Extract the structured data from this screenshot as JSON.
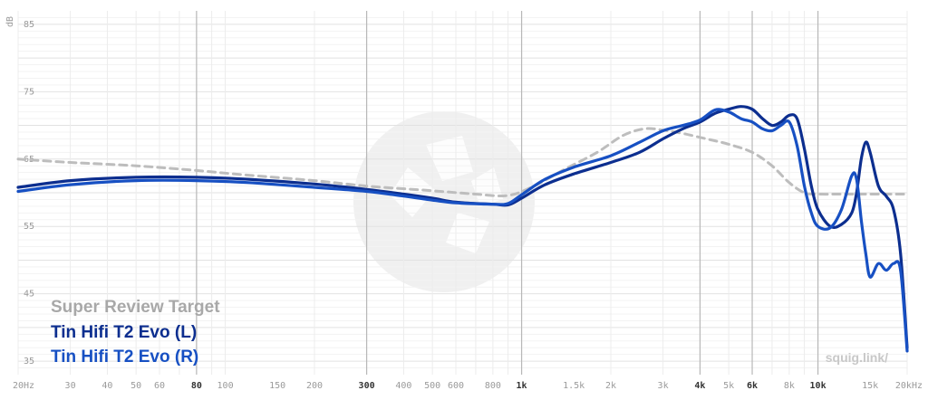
{
  "chart_data": {
    "type": "line",
    "title": "",
    "xlabel": "",
    "ylabel": "dB",
    "x_scale": "log",
    "xlim": [
      20,
      20000
    ],
    "ylim": [
      33,
      87
    ],
    "grid": true,
    "legend_position": "bottom-left",
    "x_ticks": [
      {
        "value": 20,
        "label": "20Hz",
        "major": false
      },
      {
        "value": 30,
        "label": "30",
        "major": false
      },
      {
        "value": 40,
        "label": "40",
        "major": false
      },
      {
        "value": 50,
        "label": "50",
        "major": false
      },
      {
        "value": 60,
        "label": "60",
        "major": false
      },
      {
        "value": 80,
        "label": "80",
        "major": true
      },
      {
        "value": 100,
        "label": "100",
        "major": false
      },
      {
        "value": 150,
        "label": "150",
        "major": false
      },
      {
        "value": 200,
        "label": "200",
        "major": false
      },
      {
        "value": 300,
        "label": "300",
        "major": true
      },
      {
        "value": 400,
        "label": "400",
        "major": false
      },
      {
        "value": 500,
        "label": "500",
        "major": false
      },
      {
        "value": 600,
        "label": "600",
        "major": false
      },
      {
        "value": 800,
        "label": "800",
        "major": false
      },
      {
        "value": 1000,
        "label": "1k",
        "major": true
      },
      {
        "value": 1500,
        "label": "1.5k",
        "major": false
      },
      {
        "value": 2000,
        "label": "2k",
        "major": false
      },
      {
        "value": 3000,
        "label": "3k",
        "major": false
      },
      {
        "value": 4000,
        "label": "4k",
        "major": true
      },
      {
        "value": 5000,
        "label": "5k",
        "major": false
      },
      {
        "value": 6000,
        "label": "6k",
        "major": true
      },
      {
        "value": 8000,
        "label": "8k",
        "major": false
      },
      {
        "value": 10000,
        "label": "10k",
        "major": true
      },
      {
        "value": 15000,
        "label": "15k",
        "major": false
      },
      {
        "value": 20000,
        "label": "20kHz",
        "major": false
      }
    ],
    "y_ticks": [
      {
        "value": 85,
        "label": "85"
      },
      {
        "value": 75,
        "label": "75"
      },
      {
        "value": 65,
        "label": "65"
      },
      {
        "value": 55,
        "label": "55"
      },
      {
        "value": 45,
        "label": "45"
      },
      {
        "value": 35,
        "label": "35"
      }
    ],
    "series": [
      {
        "name": "Super Review Target",
        "color": "#bdbdbd",
        "dashed": true,
        "x": [
          20,
          30,
          50,
          80,
          120,
          200,
          300,
          500,
          700,
          900,
          1100,
          1400,
          1800,
          2200,
          2600,
          3000,
          3500,
          4200,
          5000,
          6000,
          7000,
          8000,
          9000,
          10000,
          12000,
          15000,
          18000,
          20000
        ],
        "y": [
          65,
          64.5,
          64,
          63.3,
          62.6,
          61.8,
          61,
          60.3,
          59.8,
          59.6,
          61,
          63.5,
          66,
          68.5,
          69.5,
          69.3,
          68.8,
          68,
          67.2,
          66,
          64,
          61.5,
          60,
          59.8,
          59.8,
          59.8,
          59.8,
          59.8
        ]
      },
      {
        "name": "Tin Hifi T2 Evo (L)",
        "color": "#0c2e8f",
        "dashed": false,
        "x": [
          20,
          30,
          50,
          80,
          120,
          200,
          300,
          400,
          500,
          600,
          800,
          900,
          1000,
          1200,
          1500,
          2000,
          2500,
          3000,
          3500,
          4000,
          4500,
          5000,
          5500,
          6000,
          6500,
          7000,
          7500,
          8000,
          8500,
          9000,
          9500,
          10000,
          11000,
          12000,
          13000,
          13500,
          14000,
          14500,
          15000,
          16000,
          17000,
          18000,
          19000,
          20000
        ],
        "y": [
          60.8,
          61.8,
          62.3,
          62.3,
          62,
          61.3,
          60.5,
          59.8,
          59.2,
          58.6,
          58.3,
          58.2,
          59.2,
          61.2,
          62.8,
          64.5,
          66,
          68,
          69.5,
          70.5,
          71.8,
          72.4,
          72.8,
          72.4,
          71,
          70,
          70.5,
          71.5,
          71,
          66.5,
          61,
          57.5,
          55,
          55.3,
          57,
          60,
          65,
          67.5,
          66,
          61,
          59.5,
          57.5,
          51,
          37
        ]
      },
      {
        "name": "Tin Hifi T2 Evo (R)",
        "color": "#1750c3",
        "dashed": false,
        "x": [
          20,
          30,
          50,
          80,
          120,
          200,
          300,
          400,
          500,
          600,
          800,
          900,
          1000,
          1200,
          1500,
          2000,
          2500,
          3000,
          3500,
          4000,
          4500,
          5000,
          5500,
          6000,
          6500,
          7000,
          7500,
          8000,
          8500,
          9000,
          9500,
          10000,
          11000,
          12000,
          13000,
          13500,
          14000,
          14500,
          15000,
          16000,
          17000,
          18000,
          19000,
          20000
        ],
        "y": [
          60.2,
          61.2,
          61.8,
          61.8,
          61.5,
          60.8,
          60.2,
          59.5,
          58.9,
          58.5,
          58.3,
          58.4,
          59.7,
          62,
          63.8,
          65.5,
          67.5,
          69.2,
          70,
          70.8,
          72.3,
          72,
          71,
          70.5,
          69.5,
          69.2,
          70,
          70.5,
          67,
          61,
          57,
          55,
          54.8,
          57.5,
          62.5,
          62,
          56,
          51,
          47.5,
          49.5,
          48.5,
          49.5,
          48.5,
          36.5
        ]
      }
    ]
  },
  "watermark": {
    "brand": "squig.link/"
  }
}
